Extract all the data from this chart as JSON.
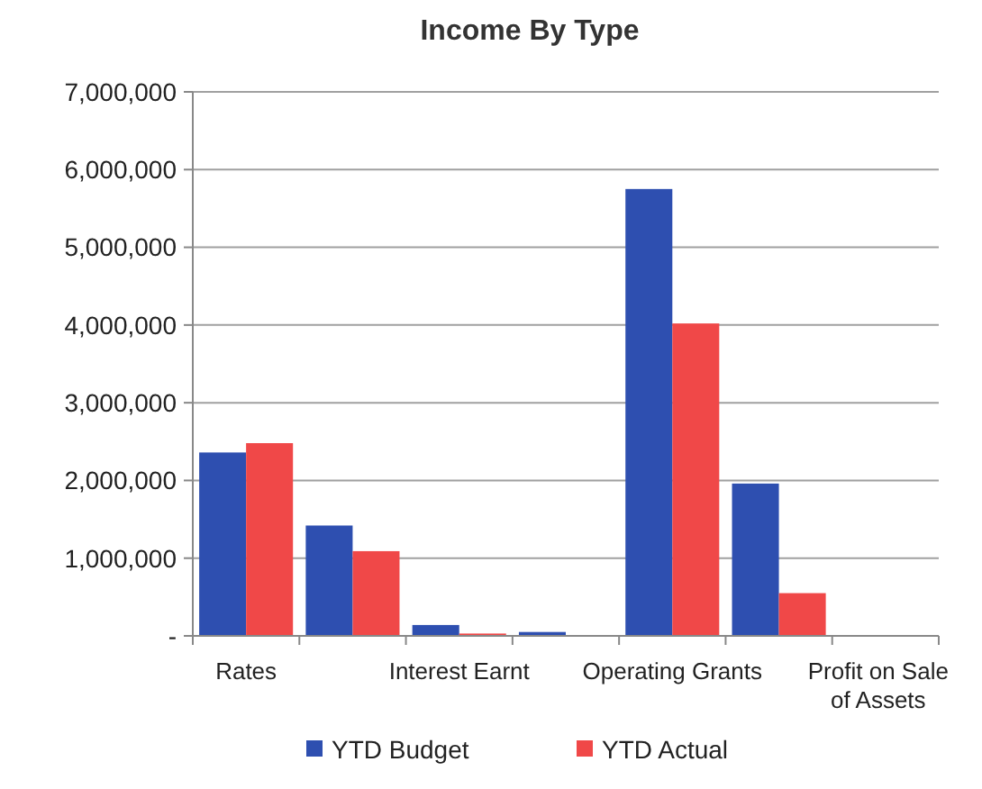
{
  "chart_data": {
    "type": "bar",
    "title": "Income By Type",
    "categories": [
      "Rates",
      null,
      "Interest Earnt",
      null,
      "Operating Grants",
      null,
      "Profit on Sale of Assets"
    ],
    "series": [
      {
        "name": "YTD Budget",
        "color": "#2e4fb0",
        "values": [
          2360000,
          1420000,
          140000,
          50000,
          5750000,
          1960000,
          0
        ]
      },
      {
        "name": "YTD Actual",
        "color": "#f04848",
        "values": [
          2480000,
          1090000,
          30000,
          0,
          4020000,
          550000,
          0
        ]
      }
    ],
    "ylim": [
      0,
      7000000
    ],
    "yticks": [
      {
        "value": 0,
        "label": "-"
      },
      {
        "value": 1000000,
        "label": "1,000,000"
      },
      {
        "value": 2000000,
        "label": "2,000,000"
      },
      {
        "value": 3000000,
        "label": "3,000,000"
      },
      {
        "value": 4000000,
        "label": "4,000,000"
      },
      {
        "value": 5000000,
        "label": "5,000,000"
      },
      {
        "value": 6000000,
        "label": "6,000,000"
      },
      {
        "value": 7000000,
        "label": "7,000,000"
      }
    ],
    "grid": "y",
    "legend": "bottom"
  }
}
